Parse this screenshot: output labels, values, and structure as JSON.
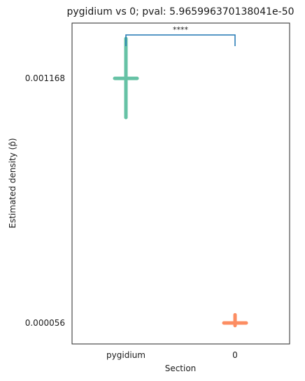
{
  "chart_data": {
    "type": "scatter",
    "title": "pygidium vs 0; pval: 5.965996370138041e-50",
    "xlabel": "Section",
    "ylabel": "Estimated density (p̂)",
    "categories": [
      "pygidium",
      "0"
    ],
    "category_colors": [
      "#66c2a5",
      "#fc8d62"
    ],
    "yticks": [
      "0.001168",
      "0.000056"
    ],
    "series": [
      {
        "values": [
          {
            "category": "pygidium",
            "y": 0.001168,
            "y_low": 0.00099,
            "y_high": 0.001349
          },
          {
            "category": "0",
            "y": 5.6e-05,
            "y_low": 4.4e-05,
            "y_high": 9.3e-05
          }
        ]
      }
    ],
    "annotation": {
      "text": "****",
      "from": "pygidium",
      "to": "0",
      "color": "#1f77b4"
    },
    "ylim": [
      -3.95e-05,
      0.0014195
    ],
    "grid": false
  }
}
